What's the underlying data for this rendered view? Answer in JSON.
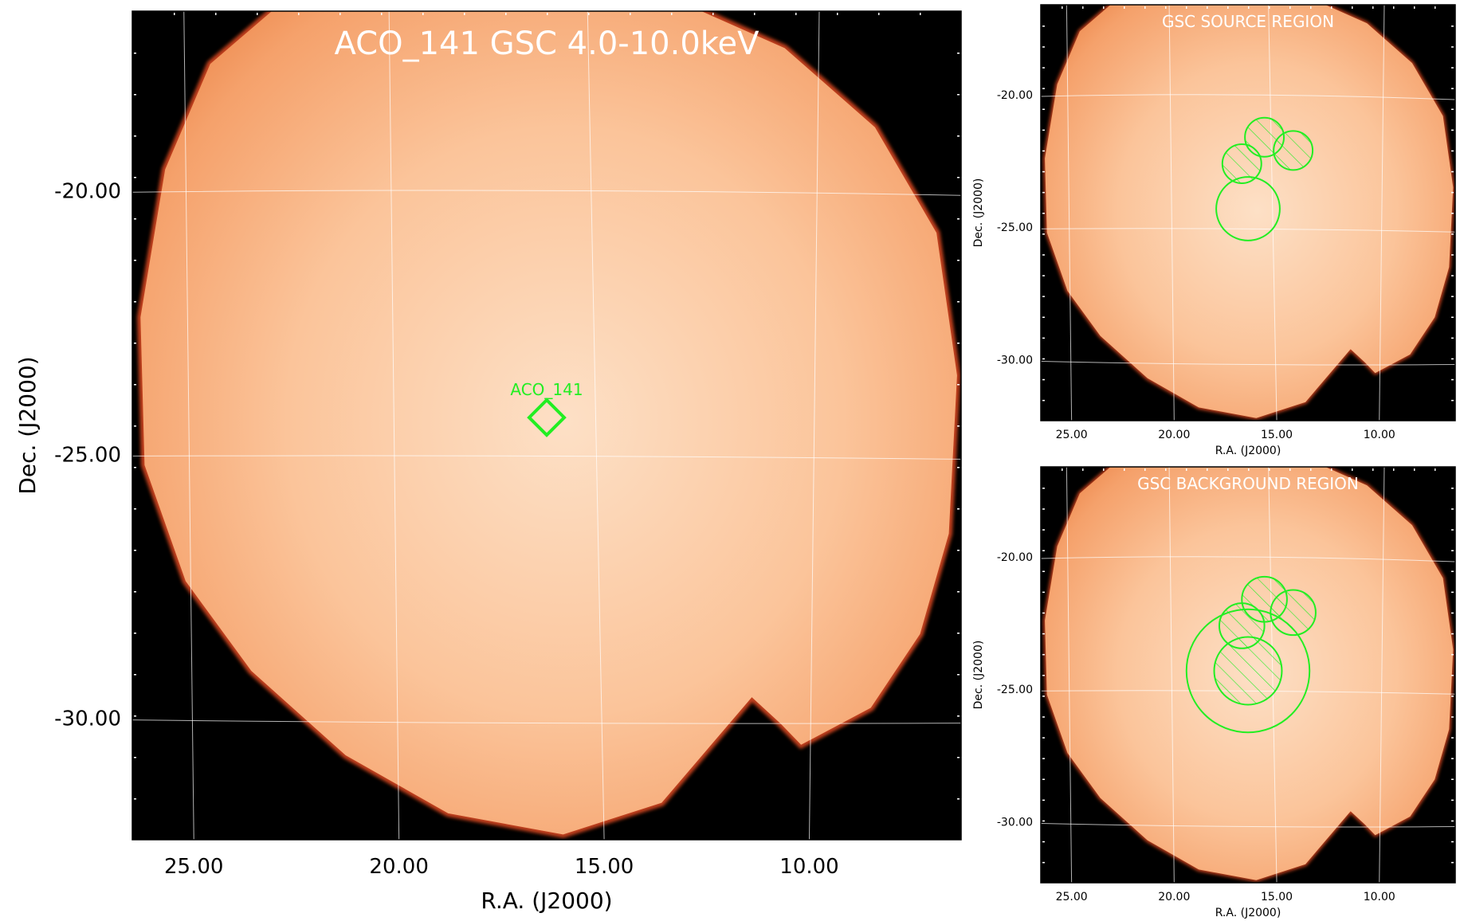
{
  "chart_data": [
    {
      "type": "heatmap",
      "panel": "main",
      "title": "ACO_141 GSC 4.0-10.0keV",
      "xlabel": "R.A. (J2000)",
      "ylabel": "Dec. (J2000)",
      "x_ticks": [
        "25.00",
        "20.00",
        "15.00",
        "10.00"
      ],
      "y_ticks": [
        "-20.00",
        "-25.00",
        "-30.00"
      ],
      "xlim": [
        26.5,
        6.3
      ],
      "ylim": [
        -32.3,
        -16.6
      ],
      "grid": true,
      "marker": {
        "label": "ACO_141",
        "ra": 16.4,
        "dec": -24.3,
        "shape": "diamond"
      }
    },
    {
      "type": "heatmap",
      "panel": "source",
      "title": "GSC SOURCE REGION",
      "xlabel": "R.A. (J2000)",
      "ylabel": "Dec. (J2000)",
      "x_ticks": [
        "25.00",
        "20.00",
        "15.00",
        "10.00"
      ],
      "y_ticks": [
        "-20.00",
        "-25.00",
        "-30.00"
      ],
      "xlim": [
        26.5,
        6.3
      ],
      "ylim": [
        -32.3,
        -16.6
      ],
      "grid": true,
      "regions": [
        {
          "shape": "circle",
          "ra": 16.4,
          "dec": -24.3,
          "radius_deg": 1.55,
          "hatched": false
        },
        {
          "shape": "circle",
          "ra": 16.7,
          "dec": -22.6,
          "radius_deg": 0.95,
          "hatched": true
        },
        {
          "shape": "circle",
          "ra": 15.6,
          "dec": -21.6,
          "radius_deg": 0.95,
          "hatched": true
        },
        {
          "shape": "circle",
          "ra": 14.2,
          "dec": -22.1,
          "radius_deg": 0.95,
          "hatched": true
        }
      ]
    },
    {
      "type": "heatmap",
      "panel": "background",
      "title": "GSC BACKGROUND REGION",
      "xlabel": "R.A. (J2000)",
      "ylabel": "Dec. (J2000)",
      "x_ticks": [
        "25.00",
        "20.00",
        "15.00",
        "10.00"
      ],
      "y_ticks": [
        "-20.00",
        "-25.00",
        "-30.00"
      ],
      "xlim": [
        26.5,
        6.3
      ],
      "ylim": [
        -32.3,
        -16.6
      ],
      "grid": true,
      "regions": [
        {
          "shape": "circle",
          "ra": 16.4,
          "dec": -24.3,
          "radius_deg": 3.0,
          "hatched": false
        },
        {
          "shape": "circle",
          "ra": 16.4,
          "dec": -24.3,
          "radius_deg": 1.65,
          "hatched": true
        },
        {
          "shape": "circle",
          "ra": 16.7,
          "dec": -22.6,
          "radius_deg": 1.1,
          "hatched": true
        },
        {
          "shape": "circle",
          "ra": 15.6,
          "dec": -21.6,
          "radius_deg": 1.1,
          "hatched": true
        },
        {
          "shape": "circle",
          "ra": 14.2,
          "dec": -22.1,
          "radius_deg": 1.1,
          "hatched": true
        }
      ]
    }
  ],
  "colors": {
    "background": "#000000",
    "field_outer": "#f5a16b",
    "field_inner": "#fde0c6",
    "field_edge": "#c2401a",
    "grid": "#ffffff",
    "region": "#22ee22",
    "title_text": "#ffffff"
  }
}
